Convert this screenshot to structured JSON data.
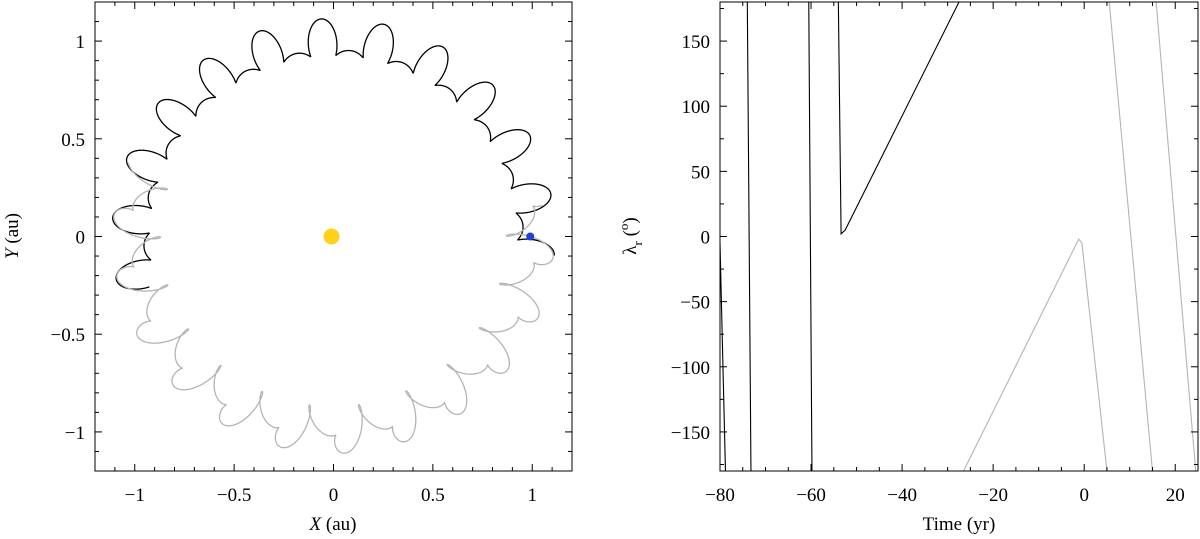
{
  "chart_data": [
    {
      "type": "line",
      "panel": "left",
      "title": "",
      "xlabel_var": "X",
      "xlabel_unit": " (au)",
      "ylabel_var": "Y",
      "ylabel_unit": " (au)",
      "xlim": [
        -1.2,
        1.2
      ],
      "ylim": [
        -1.2,
        1.2
      ],
      "xticks": [
        -1,
        -0.5,
        0,
        0.5,
        1
      ],
      "xtick_labels": [
        "−1",
        "−0.5",
        "0",
        "0.5",
        "1"
      ],
      "yticks": [
        -1,
        -0.5,
        0,
        0.5,
        1
      ],
      "ytick_labels": [
        "−1",
        "−0.5",
        "0",
        "0.5",
        "1"
      ],
      "sun": {
        "x": -0.01,
        "y": 0.0,
        "color": "#FFD11A"
      },
      "earth": {
        "x": 0.99,
        "y": 0.0,
        "color": "#1F3FD8"
      },
      "series": [
        {
          "name": "black orbit",
          "color": "#000000",
          "r_mean": 0.99,
          "r_amp": 0.08,
          "loop_radius": 0.045,
          "loops": 44,
          "theta_start_deg": -5,
          "theta_end_deg": 195
        },
        {
          "name": "gray orbit",
          "color": "#B4B4B4",
          "r_mean": 1.0,
          "r_amp": 0.09,
          "loop_radius": 0.05,
          "loops": 44,
          "theta_start_deg": 160,
          "theta_end_deg": 370
        }
      ]
    },
    {
      "type": "line",
      "panel": "right",
      "title": "",
      "xlabel": "Time (yr)",
      "ylabel_base": "λ",
      "ylabel_sub": "r",
      "ylabel_paren_open": " (",
      "ylabel_sup": "o",
      "ylabel_paren_close": ")",
      "xlim": [
        -80,
        25
      ],
      "ylim": [
        -180,
        180
      ],
      "xticks": [
        -80,
        -60,
        -40,
        -20,
        0,
        20
      ],
      "xtick_labels": [
        "−80",
        "−60",
        "−40",
        "−20",
        "0",
        "20"
      ],
      "yticks": [
        -150,
        -100,
        -50,
        0,
        50,
        100,
        150
      ],
      "ytick_labels": [
        "−150",
        "−100",
        "−50",
        "0",
        "50",
        "100",
        "150"
      ],
      "series": [
        {
          "name": "black",
          "color": "#000000",
          "segments": [
            [
              [
                -80,
                -5
              ],
              [
                -78.8,
                -180
              ]
            ],
            [
              [
                -74,
                180
              ],
              [
                -73.2,
                -180
              ]
            ],
            [
              [
                -60.5,
                180
              ],
              [
                -59.8,
                -180
              ]
            ],
            [
              [
                -54,
                180
              ],
              [
                -53.4,
                2
              ],
              [
                -52.5,
                5
              ],
              [
                -27.5,
                180
              ]
            ]
          ]
        },
        {
          "name": "gray",
          "color": "#B4B4B4",
          "segments": [
            [
              [
                -26.5,
                -180
              ],
              [
                -1.2,
                -2
              ],
              [
                -0.5,
                -5
              ],
              [
                5,
                -180
              ]
            ],
            [
              [
                5.5,
                180
              ],
              [
                15,
                -180
              ]
            ],
            [
              [
                15.8,
                180
              ],
              [
                24.5,
                -180
              ]
            ]
          ]
        }
      ]
    }
  ]
}
